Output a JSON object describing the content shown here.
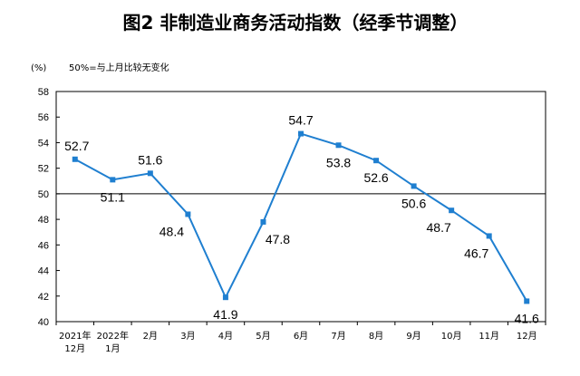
{
  "chart_data": {
    "type": "line",
    "title": "图2  非制造业商务活动指数（经季节调整）",
    "unit_label": "(%)",
    "note": "50%=与上月比较无变化",
    "ylim": [
      40,
      58
    ],
    "yticks": [
      40,
      42,
      44,
      46,
      48,
      50,
      52,
      54,
      56,
      58
    ],
    "reference_line": 50,
    "grid": false,
    "categories": [
      [
        "2021年",
        "12月"
      ],
      [
        "2022年",
        "1月"
      ],
      [
        "2月"
      ],
      [
        "3月"
      ],
      [
        "4月"
      ],
      [
        "5月"
      ],
      [
        "6月"
      ],
      [
        "7月"
      ],
      [
        "8月"
      ],
      [
        "9月"
      ],
      [
        "10月"
      ],
      [
        "11月"
      ],
      [
        "12月"
      ]
    ],
    "series": [
      {
        "values": [
          52.7,
          51.1,
          51.6,
          48.4,
          41.9,
          47.8,
          54.7,
          53.8,
          52.6,
          50.6,
          48.7,
          46.7,
          41.6
        ],
        "labels": [
          "52.7",
          "51.1",
          "51.6",
          "48.4",
          "41.9",
          "47.8",
          "54.7",
          "53.8",
          "52.6",
          "50.6",
          "48.7",
          "46.7",
          "41.6"
        ],
        "color": "#1f7fd0"
      }
    ]
  }
}
